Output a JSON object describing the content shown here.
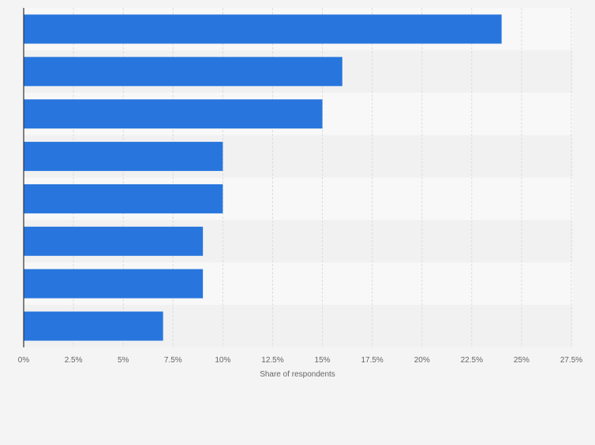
{
  "chart_data": {
    "type": "bar",
    "orientation": "horizontal",
    "categories": [
      "",
      "",
      "",
      "",
      "",
      "",
      "",
      ""
    ],
    "values": [
      24,
      16,
      15,
      10,
      10,
      9,
      9,
      7
    ],
    "xlabel": "Share of respondents",
    "ylabel": "",
    "xlim": [
      0,
      27.5
    ],
    "ticks": [
      "0%",
      "2.5%",
      "5%",
      "7.5%",
      "10%",
      "12.5%",
      "15%",
      "17.5%",
      "20%",
      "22.5%",
      "25%",
      "27.5%"
    ],
    "tick_values": [
      0,
      2.5,
      5,
      7.5,
      10,
      12.5,
      15,
      17.5,
      20,
      22.5,
      25,
      27.5
    ],
    "grid": true,
    "colors": {
      "bar": "#2876dd",
      "band_light": "#f8f8f9",
      "band_dark": "#f1f1f2",
      "grid": "#dcdcdc",
      "axis": "#333333",
      "text": "#666666",
      "background": "#f4f4f5"
    }
  }
}
